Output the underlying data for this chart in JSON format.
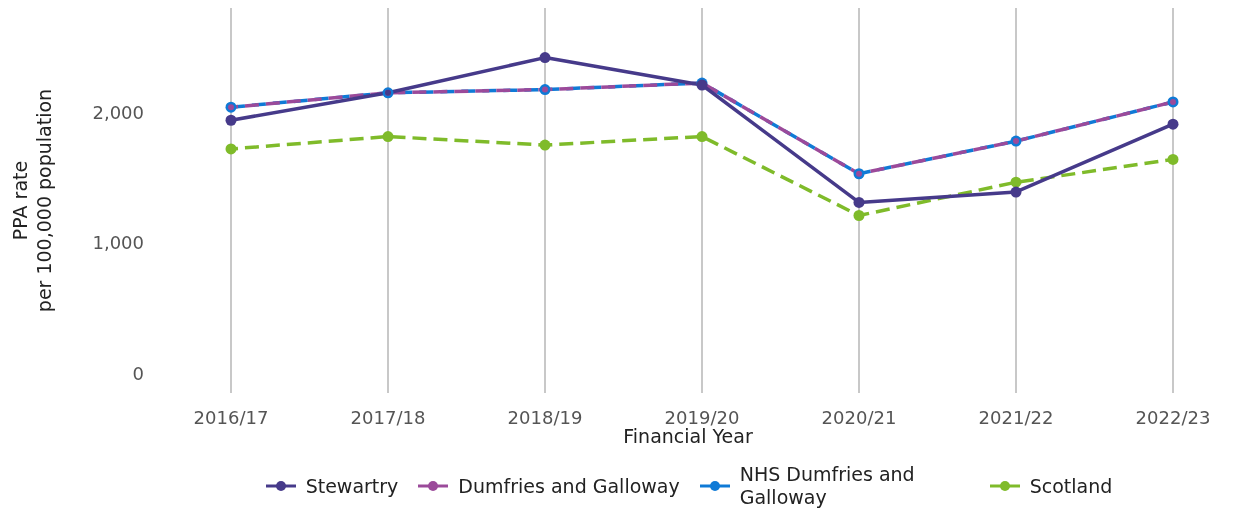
{
  "chart_data": {
    "type": "line",
    "xlabel": "Financial Year",
    "ylabel": "PPA rate\nper 100,000 population",
    "categories": [
      "2016/17",
      "2017/18",
      "2018/19",
      "2019/20",
      "2020/21",
      "2021/22",
      "2022/23"
    ],
    "series": [
      {
        "name": "Stewartry",
        "color": "#463a8a",
        "line_style": "solid",
        "values": [
          1940,
          2150,
          2420,
          2210,
          1310,
          1390,
          1910
        ]
      },
      {
        "name": "Dumfries and Galloway",
        "color": "#9b4a9a",
        "line_style": "dashed",
        "values": [
          2040,
          2150,
          2175,
          2225,
          1530,
          1780,
          2080
        ]
      },
      {
        "name": "NHS Dumfries and Galloway",
        "color": "#0f7ad6",
        "line_style": "dashed",
        "values": [
          2040,
          2150,
          2175,
          2225,
          1530,
          1780,
          2080
        ]
      },
      {
        "name": "Scotland",
        "color": "#7fbb2a",
        "line_style": "dashed",
        "values": [
          1720,
          1815,
          1750,
          1815,
          1210,
          1465,
          1640
        ]
      }
    ],
    "ylim": [
      -150,
      2800
    ],
    "yticks": [
      0,
      {
        "value": 1000,
        "label": "1,000"
      },
      {
        "value": 2000,
        "label": "2,000"
      }
    ],
    "grid": "x",
    "legend": "bottom",
    "marker": "circle"
  }
}
